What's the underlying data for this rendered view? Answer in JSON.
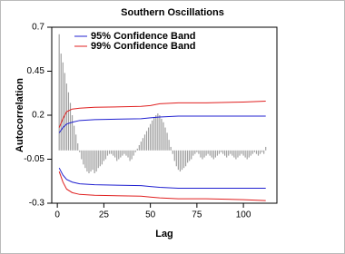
{
  "chart_data": {
    "type": "acf",
    "title": "Southern Oscillations",
    "x_label": "Lag",
    "y_label": "Autocorrelation",
    "x": [
      1,
      2,
      3,
      4,
      5,
      6,
      7,
      8,
      9,
      10,
      11,
      12,
      13,
      14,
      15,
      16,
      17,
      18,
      19,
      20,
      21,
      22,
      23,
      24,
      25,
      26,
      27,
      28,
      29,
      30,
      31,
      32,
      33,
      34,
      35,
      36,
      37,
      38,
      39,
      40,
      41,
      42,
      43,
      44,
      45,
      46,
      47,
      48,
      49,
      50,
      51,
      52,
      53,
      54,
      55,
      56,
      57,
      58,
      59,
      60,
      61,
      62,
      63,
      64,
      65,
      66,
      67,
      68,
      69,
      70,
      71,
      72,
      73,
      74,
      75,
      76,
      77,
      78,
      79,
      80,
      81,
      82,
      83,
      84,
      85,
      86,
      87,
      88,
      89,
      90,
      91,
      92,
      93,
      94,
      95,
      96,
      97,
      98,
      99,
      100,
      101,
      102,
      103,
      104,
      105,
      106,
      107,
      108,
      109,
      110,
      111,
      112
    ],
    "values": [
      0.66,
      0.55,
      0.5,
      0.44,
      0.38,
      0.33,
      0.27,
      0.2,
      0.14,
      0.09,
      0.04,
      -0.01,
      -0.05,
      -0.08,
      -0.1,
      -0.12,
      -0.13,
      -0.12,
      -0.11,
      -0.13,
      -0.12,
      -0.1,
      -0.09,
      -0.08,
      -0.06,
      -0.05,
      -0.03,
      -0.02,
      -0.02,
      -0.03,
      -0.04,
      -0.06,
      -0.05,
      -0.04,
      -0.03,
      -0.02,
      -0.03,
      -0.04,
      -0.06,
      -0.05,
      -0.03,
      -0.01,
      0.01,
      0.03,
      0.05,
      0.07,
      0.09,
      0.11,
      0.13,
      0.15,
      0.17,
      0.19,
      0.2,
      0.21,
      0.2,
      0.18,
      0.16,
      0.13,
      0.1,
      0.06,
      0.02,
      -0.02,
      -0.06,
      -0.09,
      -0.11,
      -0.12,
      -0.11,
      -0.1,
      -0.09,
      -0.07,
      -0.06,
      -0.05,
      -0.03,
      -0.02,
      -0.01,
      -0.02,
      -0.04,
      -0.05,
      -0.04,
      -0.03,
      -0.02,
      -0.03,
      -0.04,
      -0.05,
      -0.04,
      -0.03,
      -0.02,
      -0.01,
      -0.02,
      -0.03,
      -0.04,
      -0.03,
      -0.02,
      -0.03,
      -0.04,
      -0.05,
      -0.04,
      -0.03,
      -0.02,
      -0.03,
      -0.04,
      -0.05,
      -0.04,
      -0.03,
      -0.02,
      -0.01,
      -0.02,
      -0.03,
      -0.02,
      -0.01,
      -0.02,
      0.02
    ],
    "bar_color": "#a0a0a0",
    "series": [
      {
        "name": "95% Confidence Band",
        "color": "#2020d0",
        "x": [
          1,
          3,
          5,
          8,
          12,
          20,
          45,
          50,
          55,
          65,
          80,
          100,
          112
        ],
        "values": [
          0.1,
          0.13,
          0.15,
          0.16,
          0.17,
          0.175,
          0.18,
          0.185,
          0.19,
          0.195,
          0.195,
          0.195,
          0.195
        ],
        "lower": [
          -0.1,
          -0.14,
          -0.165,
          -0.18,
          -0.19,
          -0.195,
          -0.2,
          -0.205,
          -0.21,
          -0.215,
          -0.215,
          -0.215,
          -0.215
        ]
      },
      {
        "name": "99% Confidence Band",
        "color": "#e02020",
        "x": [
          1,
          3,
          5,
          8,
          12,
          20,
          45,
          50,
          55,
          65,
          80,
          100,
          112
        ],
        "values": [
          0.13,
          0.18,
          0.22,
          0.235,
          0.24,
          0.245,
          0.25,
          0.255,
          0.265,
          0.27,
          0.27,
          0.275,
          0.28
        ],
        "lower": [
          -0.12,
          -0.18,
          -0.22,
          -0.24,
          -0.25,
          -0.255,
          -0.26,
          -0.265,
          -0.27,
          -0.275,
          -0.275,
          -0.28,
          -0.285
        ]
      }
    ],
    "xlim": [
      -3,
      118
    ],
    "xticks": [
      0,
      25,
      50,
      75,
      100
    ],
    "ylim": [
      -0.3,
      0.7
    ],
    "yticks": [
      0.7,
      0.45,
      0.2,
      -0.05,
      -0.3
    ],
    "legend": "upper-left"
  }
}
